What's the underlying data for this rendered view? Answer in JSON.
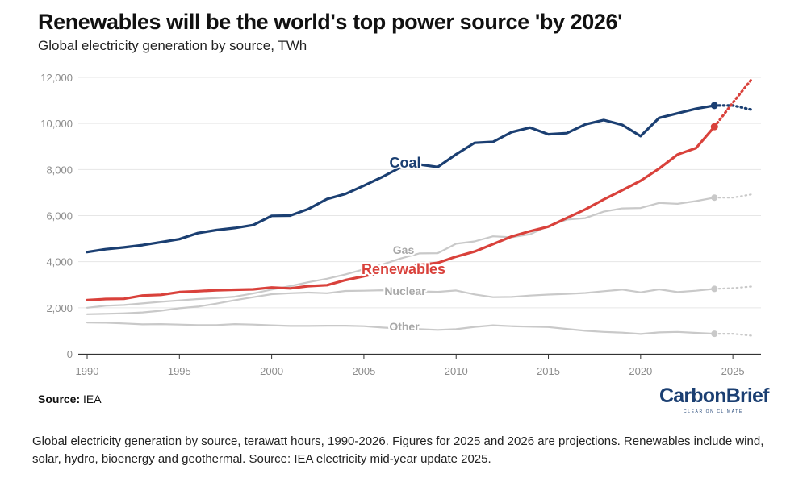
{
  "title": "Renewables will be the world's top power source 'by 2026'",
  "subtitle": "Global electricity generation by source, TWh",
  "source_label": "Source:",
  "source_value": "IEA",
  "logo": {
    "text": "CarbonBrief",
    "tagline": "CLEAR ON CLIMATE"
  },
  "caption": "Global electricity generation by source, terawatt hours, 1990-2026. Figures for 2025 and 2026 are projections. Renewables include wind, solar, hydro, bioenergy and geothermal. Source: IEA electricity mid-year update 2025.",
  "colors": {
    "coal": "#1b3f72",
    "renewables": "#d9413b",
    "gray": "#c9c9c9",
    "gray_label": "#a8a8a8",
    "grid": "#e6e6e6",
    "axis": "#333333",
    "tick": "#8c8c8c"
  },
  "chart_data": {
    "type": "line",
    "title": "Renewables will be the world's top power source 'by 2026'",
    "ylabel": "TWh",
    "xlim": [
      1990,
      2026
    ],
    "ylim": [
      0,
      12000
    ],
    "y_ticks": [
      0,
      2000,
      4000,
      6000,
      8000,
      10000,
      12000
    ],
    "y_tick_labels": [
      "0",
      "2,000",
      "4,000",
      "6,000",
      "8,000",
      "10,000",
      "12,000"
    ],
    "x_ticks": [
      1990,
      1995,
      2000,
      2005,
      2010,
      2015,
      2020,
      2025
    ],
    "x": [
      1990,
      1991,
      1992,
      1993,
      1994,
      1995,
      1996,
      1997,
      1998,
      1999,
      2000,
      2001,
      2002,
      2003,
      2004,
      2005,
      2006,
      2007,
      2008,
      2009,
      2010,
      2011,
      2012,
      2013,
      2014,
      2015,
      2016,
      2017,
      2018,
      2019,
      2020,
      2021,
      2022,
      2023,
      2024
    ],
    "projection_x": [
      2024,
      2025,
      2026
    ],
    "series": [
      {
        "name": "Coal",
        "label": "Coal",
        "color_key": "coal",
        "values": [
          4420,
          4540,
          4620,
          4720,
          4850,
          4980,
          5240,
          5370,
          5460,
          5590,
          5990,
          6000,
          6290,
          6720,
          6940,
          7300,
          7680,
          8100,
          8220,
          8110,
          8660,
          9160,
          9200,
          9620,
          9820,
          9530,
          9580,
          9960,
          10150,
          9940,
          9450,
          10240,
          10440,
          10640,
          10780
        ],
        "projection": [
          10780,
          10780,
          10600
        ]
      },
      {
        "name": "Renewables",
        "label": "Renewables",
        "color_key": "renewables",
        "values": [
          2330,
          2380,
          2390,
          2530,
          2560,
          2680,
          2720,
          2760,
          2780,
          2800,
          2880,
          2840,
          2940,
          2980,
          3200,
          3370,
          3530,
          3690,
          3860,
          3950,
          4220,
          4440,
          4760,
          5090,
          5320,
          5520,
          5900,
          6270,
          6700,
          7100,
          7510,
          8040,
          8650,
          8930,
          9860
        ],
        "projection": [
          9860,
          10900,
          11900
        ]
      },
      {
        "name": "Gas",
        "label": "Gas",
        "color_key": "gray",
        "values": [
          2000,
          2090,
          2120,
          2190,
          2260,
          2320,
          2380,
          2420,
          2480,
          2620,
          2790,
          2940,
          3110,
          3260,
          3450,
          3670,
          3880,
          4140,
          4360,
          4370,
          4780,
          4880,
          5100,
          5060,
          5190,
          5550,
          5830,
          5890,
          6170,
          6310,
          6330,
          6550,
          6510,
          6630,
          6780
        ],
        "projection": [
          6780,
          6780,
          6920
        ]
      },
      {
        "name": "Nuclear",
        "label": "Nuclear",
        "color_key": "gray",
        "values": [
          1720,
          1740,
          1760,
          1800,
          1870,
          1980,
          2050,
          2180,
          2330,
          2460,
          2590,
          2630,
          2660,
          2630,
          2730,
          2740,
          2760,
          2720,
          2710,
          2690,
          2750,
          2580,
          2460,
          2470,
          2530,
          2570,
          2600,
          2640,
          2720,
          2790,
          2670,
          2800,
          2680,
          2740,
          2820
        ],
        "projection": [
          2820,
          2850,
          2920
        ]
      },
      {
        "name": "Other",
        "label": "Other",
        "color_key": "gray",
        "values": [
          1360,
          1350,
          1320,
          1280,
          1290,
          1270,
          1250,
          1250,
          1290,
          1270,
          1240,
          1210,
          1210,
          1220,
          1220,
          1200,
          1140,
          1100,
          1070,
          1040,
          1070,
          1170,
          1240,
          1200,
          1180,
          1160,
          1080,
          1000,
          950,
          920,
          860,
          930,
          950,
          910,
          870
        ],
        "projection": [
          870,
          870,
          790
        ]
      }
    ]
  }
}
